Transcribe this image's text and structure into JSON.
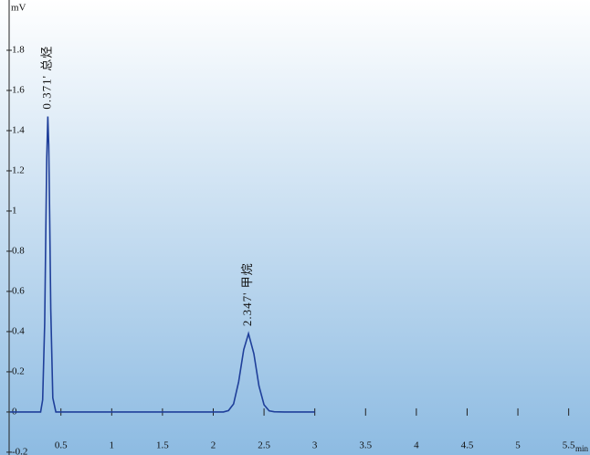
{
  "chart_data": {
    "type": "line",
    "y_label": "mV",
    "x_label": "min",
    "x": [
      0,
      0.2,
      0.3,
      0.32,
      0.34,
      0.35,
      0.36,
      0.371,
      0.38,
      0.39,
      0.4,
      0.42,
      0.45,
      0.5,
      0.8,
      1.5,
      2.0,
      2.1,
      2.15,
      2.2,
      2.25,
      2.3,
      2.347,
      2.4,
      2.45,
      2.5,
      2.55,
      2.6,
      2.7,
      3.0
    ],
    "series": [
      {
        "color": "#1f3f9a",
        "values": [
          0,
          0,
          0,
          0.06,
          0.44,
          0.85,
          1.26,
          1.47,
          1.33,
          0.94,
          0.51,
          0.07,
          0,
          0,
          0,
          0,
          0,
          0,
          0.007,
          0.04,
          0.15,
          0.31,
          0.39,
          0.29,
          0.13,
          0.036,
          0.006,
          0.001,
          0,
          0
        ]
      }
    ],
    "annotations": [
      {
        "text": "0.371' 总烃",
        "x": 0.371
      },
      {
        "text": "2.347' 甲烷",
        "x": 2.347
      }
    ],
    "xlim": [
      -0.1,
      5.71
    ],
    "ylim": [
      -0.214,
      2.05
    ],
    "xticks": [
      0.5,
      1,
      1.5,
      2,
      2.5,
      3,
      3.5,
      4,
      4.5,
      5,
      5.5
    ],
    "yticks": [
      -0.2,
      0,
      0.2,
      0.4,
      0.6,
      0.8,
      1,
      1.2,
      1.4,
      1.6,
      1.8
    ]
  }
}
